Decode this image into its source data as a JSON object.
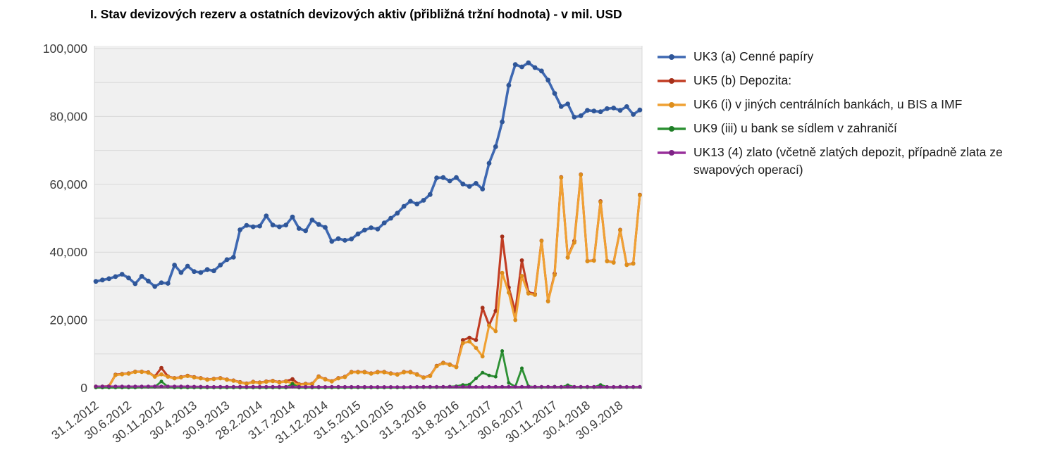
{
  "figure": {
    "title": "I. Stav devizových rezerv a ostatních devizových aktiv (přibližná tržní hodnota) - v mil. USD"
  },
  "chart_data": {
    "type": "line",
    "title": "I. Stav devizových rezerv a ostatních devizových aktiv (přibližná tržní hodnota) - v mil. USD",
    "unit": "mil. USD",
    "ylim": [
      0,
      100000
    ],
    "grid_step": 10000,
    "grid": "horizontal",
    "legend_position": "right",
    "y_ticks": [
      0,
      20000,
      40000,
      60000,
      80000,
      100000
    ],
    "y_tick_labels": [
      "0",
      "20,000",
      "40,000",
      "60,000",
      "80,000",
      "100,000"
    ],
    "x_start": "31.1.2012",
    "x_end": "31.12.2018",
    "x_points": 84,
    "x_tick_every_n_points": 5,
    "x_tick_labels": [
      "31.1.2012",
      "30.6.2012",
      "30.11.2012",
      "30.4.2013",
      "30.9.2013",
      "28.2.2014",
      "31.7.2014",
      "31.12.2014",
      "31.5.2015",
      "31.10.2015",
      "31.3.2016",
      "31.8.2016",
      "31.1.2017",
      "30.6.2017",
      "30.11.2017",
      "30.4.2018",
      "30.9.2018"
    ],
    "series": [
      {
        "id": "UK3",
        "label": "UK3 (a) Cenné papíry",
        "color": "#3E68B2",
        "marker": "#2F5698",
        "values": [
          31400,
          31800,
          32200,
          32800,
          33500,
          32400,
          30700,
          32900,
          31500,
          29900,
          31000,
          30800,
          36200,
          34000,
          35900,
          34300,
          34000,
          34900,
          34500,
          36200,
          37800,
          38500,
          46600,
          47900,
          47500,
          47700,
          50700,
          48000,
          47500,
          48000,
          50400,
          47000,
          46300,
          49500,
          48200,
          47300,
          43200,
          44000,
          43500,
          43900,
          45400,
          46500,
          47200,
          46800,
          48600,
          50000,
          51500,
          53500,
          55000,
          54200,
          55300,
          57000,
          61900,
          62000,
          61000,
          62000,
          60100,
          59400,
          60300,
          58600,
          66200,
          71100,
          78400,
          89200,
          95300,
          94600,
          95800,
          94400,
          93400,
          90700,
          86800,
          82900,
          83700,
          79800,
          80200,
          81800,
          81600,
          81400,
          82300,
          82500,
          81800,
          82900,
          80600,
          81900
        ]
      },
      {
        "id": "UK5",
        "label": "UK5 (b) Depozita:",
        "color": "#C23D23",
        "marker": "#A5301A",
        "values": [
          400,
          400,
          500,
          3900,
          4100,
          4300,
          4800,
          4800,
          4600,
          3400,
          5900,
          3400,
          2900,
          3200,
          3600,
          3200,
          2900,
          2500,
          2700,
          2900,
          2500,
          2200,
          1700,
          1300,
          1800,
          1600,
          1900,
          2100,
          1700,
          2000,
          2600,
          1100,
          1200,
          1200,
          3400,
          2600,
          2000,
          2900,
          3300,
          4700,
          4700,
          4700,
          4300,
          4700,
          4700,
          4300,
          4000,
          4700,
          4700,
          4000,
          3100,
          3600,
          6500,
          7400,
          6900,
          6200,
          14100,
          14800,
          14100,
          23600,
          18500,
          22700,
          44600,
          29600,
          22500,
          37600,
          28200,
          27700,
          43400,
          25600,
          33700,
          62100,
          38500,
          43300,
          62900,
          37400,
          37600,
          55000,
          37400,
          37000,
          46600,
          36300,
          36700,
          56900
        ]
      },
      {
        "id": "UK6",
        "label": "UK6 (i) v jiných centrálních bankách, u BIS a IMF",
        "color": "#F0A133",
        "marker": "#DD8E1C",
        "values": [
          300,
          300,
          400,
          3800,
          4000,
          4200,
          4700,
          4700,
          4500,
          3300,
          4000,
          3300,
          2800,
          3100,
          3500,
          3100,
          2800,
          2400,
          2600,
          2800,
          2400,
          2100,
          1600,
          1200,
          1700,
          1500,
          1800,
          2000,
          1600,
          1900,
          1400,
          1000,
          1100,
          1100,
          3300,
          2500,
          1900,
          2800,
          3200,
          4600,
          4600,
          4600,
          4200,
          4600,
          4600,
          4200,
          3900,
          4600,
          4600,
          3900,
          3000,
          3500,
          6400,
          7300,
          6800,
          6100,
          13200,
          13700,
          11800,
          9300,
          18400,
          16700,
          33900,
          28100,
          20000,
          33000,
          27800,
          27400,
          43300,
          25500,
          33300,
          62000,
          38400,
          42800,
          62800,
          37300,
          37500,
          54800,
          37300,
          36900,
          46500,
          36200,
          36600,
          56800
        ]
      },
      {
        "id": "UK9",
        "label": "UK9 (iii) u bank se sídlem v zahraničí",
        "color": "#2D9134",
        "marker": "#1E7D26",
        "values": [
          100,
          100,
          100,
          100,
          100,
          100,
          100,
          200,
          300,
          300,
          1900,
          300,
          100,
          100,
          100,
          100,
          100,
          100,
          100,
          100,
          100,
          100,
          100,
          100,
          100,
          100,
          100,
          100,
          100,
          100,
          1200,
          100,
          100,
          100,
          100,
          100,
          100,
          100,
          100,
          100,
          100,
          100,
          100,
          100,
          100,
          100,
          100,
          100,
          200,
          200,
          200,
          200,
          200,
          300,
          400,
          500,
          900,
          1000,
          2800,
          4500,
          3700,
          3300,
          10900,
          1500,
          400,
          5800,
          500,
          300,
          200,
          300,
          400,
          200,
          800,
          300,
          200,
          200,
          200,
          900,
          300,
          200,
          400,
          200,
          200,
          300
        ]
      },
      {
        "id": "UK13",
        "label": "UK13 (4) zlato (včetně zlatých depozit, případně zlata ze swapových operací)",
        "color": "#99309B",
        "marker": "#7D2385",
        "values": [
          440,
          450,
          450,
          450,
          430,
          420,
          430,
          440,
          460,
          470,
          460,
          450,
          440,
          430,
          420,
          390,
          370,
          330,
          320,
          350,
          350,
          350,
          330,
          320,
          330,
          340,
          350,
          340,
          340,
          350,
          350,
          340,
          320,
          320,
          310,
          320,
          340,
          330,
          320,
          320,
          320,
          310,
          290,
          300,
          300,
          300,
          280,
          280,
          290,
          320,
          330,
          330,
          340,
          350,
          350,
          350,
          350,
          330,
          320,
          300,
          320,
          330,
          330,
          340,
          340,
          330,
          340,
          350,
          350,
          340,
          340,
          340,
          360,
          360,
          350,
          350,
          340,
          330,
          320,
          320,
          320,
          320,
          320,
          330
        ]
      }
    ],
    "plot_colors": {
      "plot_background": "#F0F0F0",
      "gridline": "#D8D8D8",
      "axis_line": "#3F3F3F",
      "tick_label": "#3D3D3D"
    }
  }
}
